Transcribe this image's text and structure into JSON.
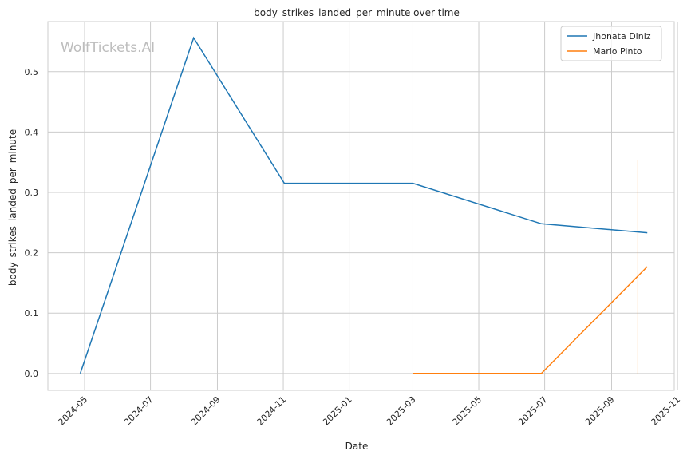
{
  "chart_data": {
    "type": "line",
    "title": "body_strikes_landed_per_minute over time",
    "xlabel": "Date",
    "ylabel": "body_strikes_landed_per_minute",
    "watermark": "WolfTickets.AI",
    "xlim": [
      "2024-03-28",
      "2025-10-29"
    ],
    "ylim": [
      -0.028,
      0.583
    ],
    "x_ticks": [
      "2024-05",
      "2024-07",
      "2024-09",
      "2024-11",
      "2025-01",
      "2025-03",
      "2025-05",
      "2025-07",
      "2025-09",
      "2025-11"
    ],
    "y_ticks": [
      "0.0",
      "0.1",
      "0.2",
      "0.3",
      "0.4",
      "0.5"
    ],
    "grid": true,
    "legend_position": "top-right",
    "series": [
      {
        "name": "Jhonata Diniz",
        "color": "#1f77b4",
        "x": [
          "2024-04-27",
          "2024-08-10",
          "2024-11-02",
          "2025-03-01",
          "2025-06-28",
          "2025-10-04"
        ],
        "y": [
          0.0,
          0.556,
          0.315,
          0.315,
          0.248,
          0.233
        ]
      },
      {
        "name": "Mario Pinto",
        "color": "#ff7f0e",
        "x": [
          "2025-03-01",
          "2025-06-28",
          "2025-10-04"
        ],
        "y": [
          0.0,
          0.0,
          0.177
        ]
      }
    ]
  }
}
